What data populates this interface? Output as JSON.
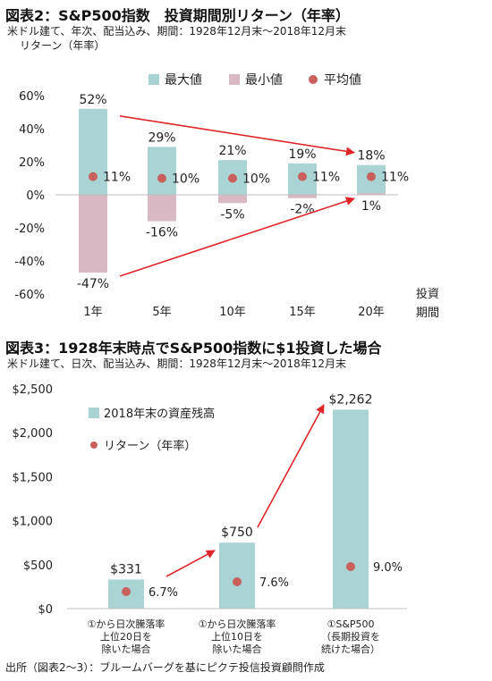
{
  "chart1": {
    "title": "図表2：S&P500指数　投資期間別リターン（年率）",
    "subtitle_line1": "米ドル建て、年次、配当込み、期間：1928年12月末～2018年12月末",
    "subtitle_line2": "リターン（年率）",
    "colors": {
      "max": "#a9d4d3",
      "min": "#d8b9c4",
      "avg": "#c9605e",
      "arrow": "#e0262a"
    }
  },
  "chart2": {
    "title": "図表3：1928年末時点でS&P500指数に$1投資した場合",
    "subtitle": "米ドル建て、日次、配当込み、期間：1928年12月末～2018年12月末",
    "colors": {
      "bar": "#a9d4d3",
      "dot": "#c9605e",
      "arrow": "#e0262a"
    }
  },
  "source": "出所（図表2～3）：ブルームバーグを基にピクテ投信投資顧問作成",
  "chart_data": [
    {
      "type": "bar",
      "categories": [
        "1年",
        "5年",
        "10年",
        "15年",
        "20年"
      ],
      "series": [
        {
          "name": "最大値",
          "values": [
            52,
            29,
            21,
            19,
            18
          ],
          "labels": [
            "52%",
            "29%",
            "21%",
            "19%",
            "18%"
          ]
        },
        {
          "name": "最小値",
          "values": [
            -47,
            -16,
            -5,
            -2,
            1
          ],
          "labels": [
            "-47%",
            "-16%",
            "-5%",
            "-2%",
            "1%"
          ]
        },
        {
          "name": "平均値",
          "values": [
            11,
            10,
            10,
            11,
            11
          ],
          "labels": [
            "11%",
            "10%",
            "10%",
            "11%",
            "11%"
          ]
        }
      ],
      "xlabel": "投資期間",
      "xlabel_lines": [
        "投資",
        "期間"
      ],
      "ylim": [
        -60,
        60
      ],
      "yticks": [
        60,
        40,
        20,
        0,
        -20,
        -40,
        -60
      ],
      "ytick_labels": [
        "60%",
        "40%",
        "20%",
        "0%",
        "-20%",
        "-40%",
        "-60%"
      ],
      "legend_position": "top",
      "grid": false
    },
    {
      "type": "bar",
      "categories": [
        [
          "①から日次騰落率",
          "上位20日を",
          "除いた場合"
        ],
        [
          "①から日次騰落率",
          "上位10日を",
          "除いた場合"
        ],
        [
          "①S&P500",
          "（長期投資を",
          "続けた場合）"
        ]
      ],
      "series": [
        {
          "name": "2018年末の資産残高",
          "values": [
            331,
            750,
            2262
          ],
          "labels": [
            "$331",
            "$750",
            "$2,262"
          ]
        },
        {
          "name": "リターン（年率）",
          "values": [
            6.7,
            7.6,
            9.0
          ],
          "labels": [
            "6.7%",
            "7.6%",
            "9.0%"
          ]
        }
      ],
      "ylim": [
        0,
        2500
      ],
      "yticks": [
        2500,
        2000,
        1500,
        1000,
        500,
        0
      ],
      "ytick_labels": [
        "$2,500",
        "$2,000",
        "$1,500",
        "$1,000",
        "$500",
        "$0"
      ],
      "legend_position": "top-left",
      "grid": false
    }
  ]
}
